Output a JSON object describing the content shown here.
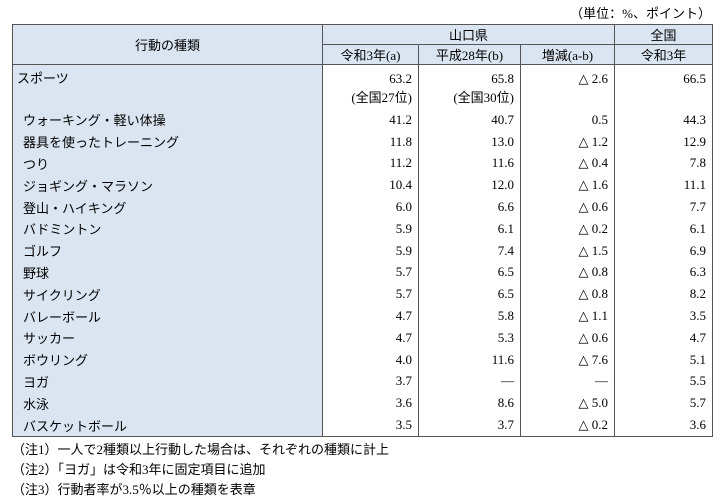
{
  "unit": "（単位：%、ポイント）",
  "table": {
    "header": {
      "item": "行動の種類",
      "region": "山口県",
      "national": "全国",
      "cols": [
        "令和3年(a)",
        "平成28年(b)",
        "増減(a-b)",
        "令和3年"
      ]
    },
    "top": {
      "label": "スポーツ",
      "cells": [
        "63.2",
        "65.8",
        "△ 2.6",
        "66.5"
      ],
      "ranks": [
        "(全国27位)",
        "(全国30位)"
      ]
    },
    "rows": [
      [
        "ウォーキング・軽い体操",
        "41.2",
        "40.7",
        "0.5",
        "44.3"
      ],
      [
        "器具を使ったトレーニング",
        "11.8",
        "13.0",
        "△ 1.2",
        "12.9"
      ],
      [
        "つり",
        "11.2",
        "11.6",
        "△ 0.4",
        "7.8"
      ],
      [
        "ジョギング・マラソン",
        "10.4",
        "12.0",
        "△ 1.6",
        "11.1"
      ],
      [
        "登山・ハイキング",
        "6.0",
        "6.6",
        "△ 0.6",
        "7.7"
      ],
      [
        "バドミントン",
        "5.9",
        "6.1",
        "△ 0.2",
        "6.1"
      ],
      [
        "ゴルフ",
        "5.9",
        "7.4",
        "△ 1.5",
        "6.9"
      ],
      [
        "野球",
        "5.7",
        "6.5",
        "△ 0.8",
        "6.3"
      ],
      [
        "サイクリング",
        "5.7",
        "6.5",
        "△ 0.8",
        "8.2"
      ],
      [
        "バレーボール",
        "4.7",
        "5.8",
        "△ 1.1",
        "3.5"
      ],
      [
        "サッカー",
        "4.7",
        "5.3",
        "△ 0.6",
        "4.7"
      ],
      [
        "ボウリング",
        "4.0",
        "11.6",
        "△ 7.6",
        "5.1"
      ],
      [
        "ヨガ",
        "3.7",
        "―",
        "―",
        "5.5"
      ],
      [
        "水泳",
        "3.6",
        "8.6",
        "△ 5.0",
        "5.7"
      ],
      [
        "バスケットボール",
        "3.5",
        "3.7",
        "△ 0.2",
        "3.6"
      ]
    ]
  },
  "notes": [
    "（注1）一人で2種類以上行動した場合は、それぞれの種類に計上",
    "（注2）「ヨガ」は令和3年に固定項目に追加",
    "（注3）行動者率が3.5％以上の種類を表章"
  ]
}
